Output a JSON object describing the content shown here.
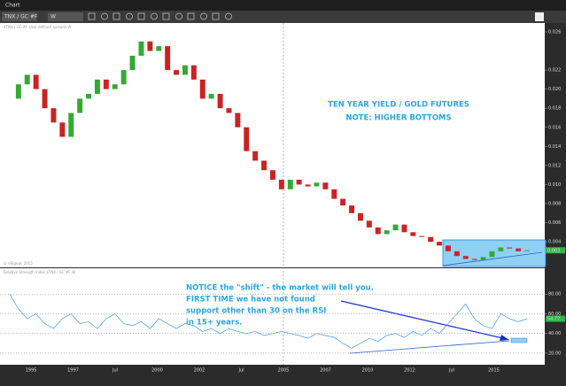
{
  "window": {
    "title": "Chart",
    "symbol": "TNX / GC #F",
    "interval": "W",
    "copyright": "© eSignal, 2015"
  },
  "chart_data": [
    {
      "type": "candlestick",
      "legend_text": "$TNX / GC #F  User-defined spreads  W",
      "annotations": [
        "TEN YEAR YIELD / GOLD FUTURES",
        "NOTE: HIGHER BOTTOMS"
      ],
      "values": [
        0.019,
        0.0205,
        0.0215,
        0.02,
        0.018,
        0.0165,
        0.015,
        0.0175,
        0.019,
        0.0195,
        0.021,
        0.02,
        0.0205,
        0.022,
        0.0235,
        0.025,
        0.024,
        0.0245,
        0.022,
        0.0215,
        0.0225,
        0.021,
        0.019,
        0.0195,
        0.018,
        0.0175,
        0.016,
        0.0135,
        0.0125,
        0.0115,
        0.0105,
        0.0095,
        0.0105,
        0.01,
        0.0098,
        0.0102,
        0.0095,
        0.0085,
        0.0078,
        0.007,
        0.0062,
        0.0055,
        0.0048,
        0.0052,
        0.0058,
        0.005,
        0.0046,
        0.0045,
        0.004,
        0.0036,
        0.003,
        0.0025,
        0.0022,
        0.0021,
        0.0024,
        0.003,
        0.0034,
        0.0033,
        0.003,
        0.0031
      ],
      "up_color": "#33aa33",
      "down_color": "#cc2222",
      "last_label": "0.003",
      "ylim": [
        0.0015,
        0.026
      ],
      "yticks": [
        {
          "value": 0.026,
          "label": "0.026"
        },
        {
          "value": 0.022,
          "label": "0.022"
        },
        {
          "value": 0.02,
          "label": "0.020"
        },
        {
          "value": 0.018,
          "label": "0.018"
        },
        {
          "value": 0.016,
          "label": "0.016"
        },
        {
          "value": 0.014,
          "label": "0.014"
        },
        {
          "value": 0.012,
          "label": "0.012"
        },
        {
          "value": 0.01,
          "label": "0.010"
        },
        {
          "value": 0.008,
          "label": "0.008"
        },
        {
          "value": 0.006,
          "label": "0.006"
        },
        {
          "value": 0.004,
          "label": "0.004"
        }
      ]
    },
    {
      "type": "line",
      "legend_text": "Relative Strength Index  $TNX / GC #F  W",
      "annotations": [
        "NOTICE the \"shift\" - the market will tell you.",
        "FIRST TIME we have not found",
        "support other than 30 on the RSI",
        "in 15+ years."
      ],
      "values": [
        80,
        65,
        55,
        60,
        50,
        45,
        55,
        60,
        50,
        52,
        45,
        55,
        60,
        50,
        48,
        52,
        45,
        55,
        50,
        45,
        50,
        48,
        42,
        45,
        40,
        45,
        42,
        40,
        42,
        38,
        40,
        42,
        40,
        38,
        35,
        40,
        38,
        36,
        30,
        25,
        30,
        35,
        32,
        38,
        40,
        36,
        42,
        38,
        45,
        40,
        50,
        60,
        70,
        55,
        48,
        45,
        60,
        55,
        52,
        55
      ],
      "color": "#3d9be9",
      "last_label": "54.77",
      "ylim": [
        10,
        100
      ],
      "yticks": [
        {
          "value": 80,
          "label": "80.00"
        },
        {
          "value": 60,
          "label": "60.00"
        },
        {
          "value": 40,
          "label": "40.00"
        },
        {
          "value": 20,
          "label": "20.00"
        }
      ],
      "x_labels": [
        "1995",
        "1997",
        "Jul",
        "2000",
        "2002",
        "Jul",
        "2005",
        "2007",
        "2010",
        "2012",
        "Jul",
        "2015"
      ]
    }
  ]
}
